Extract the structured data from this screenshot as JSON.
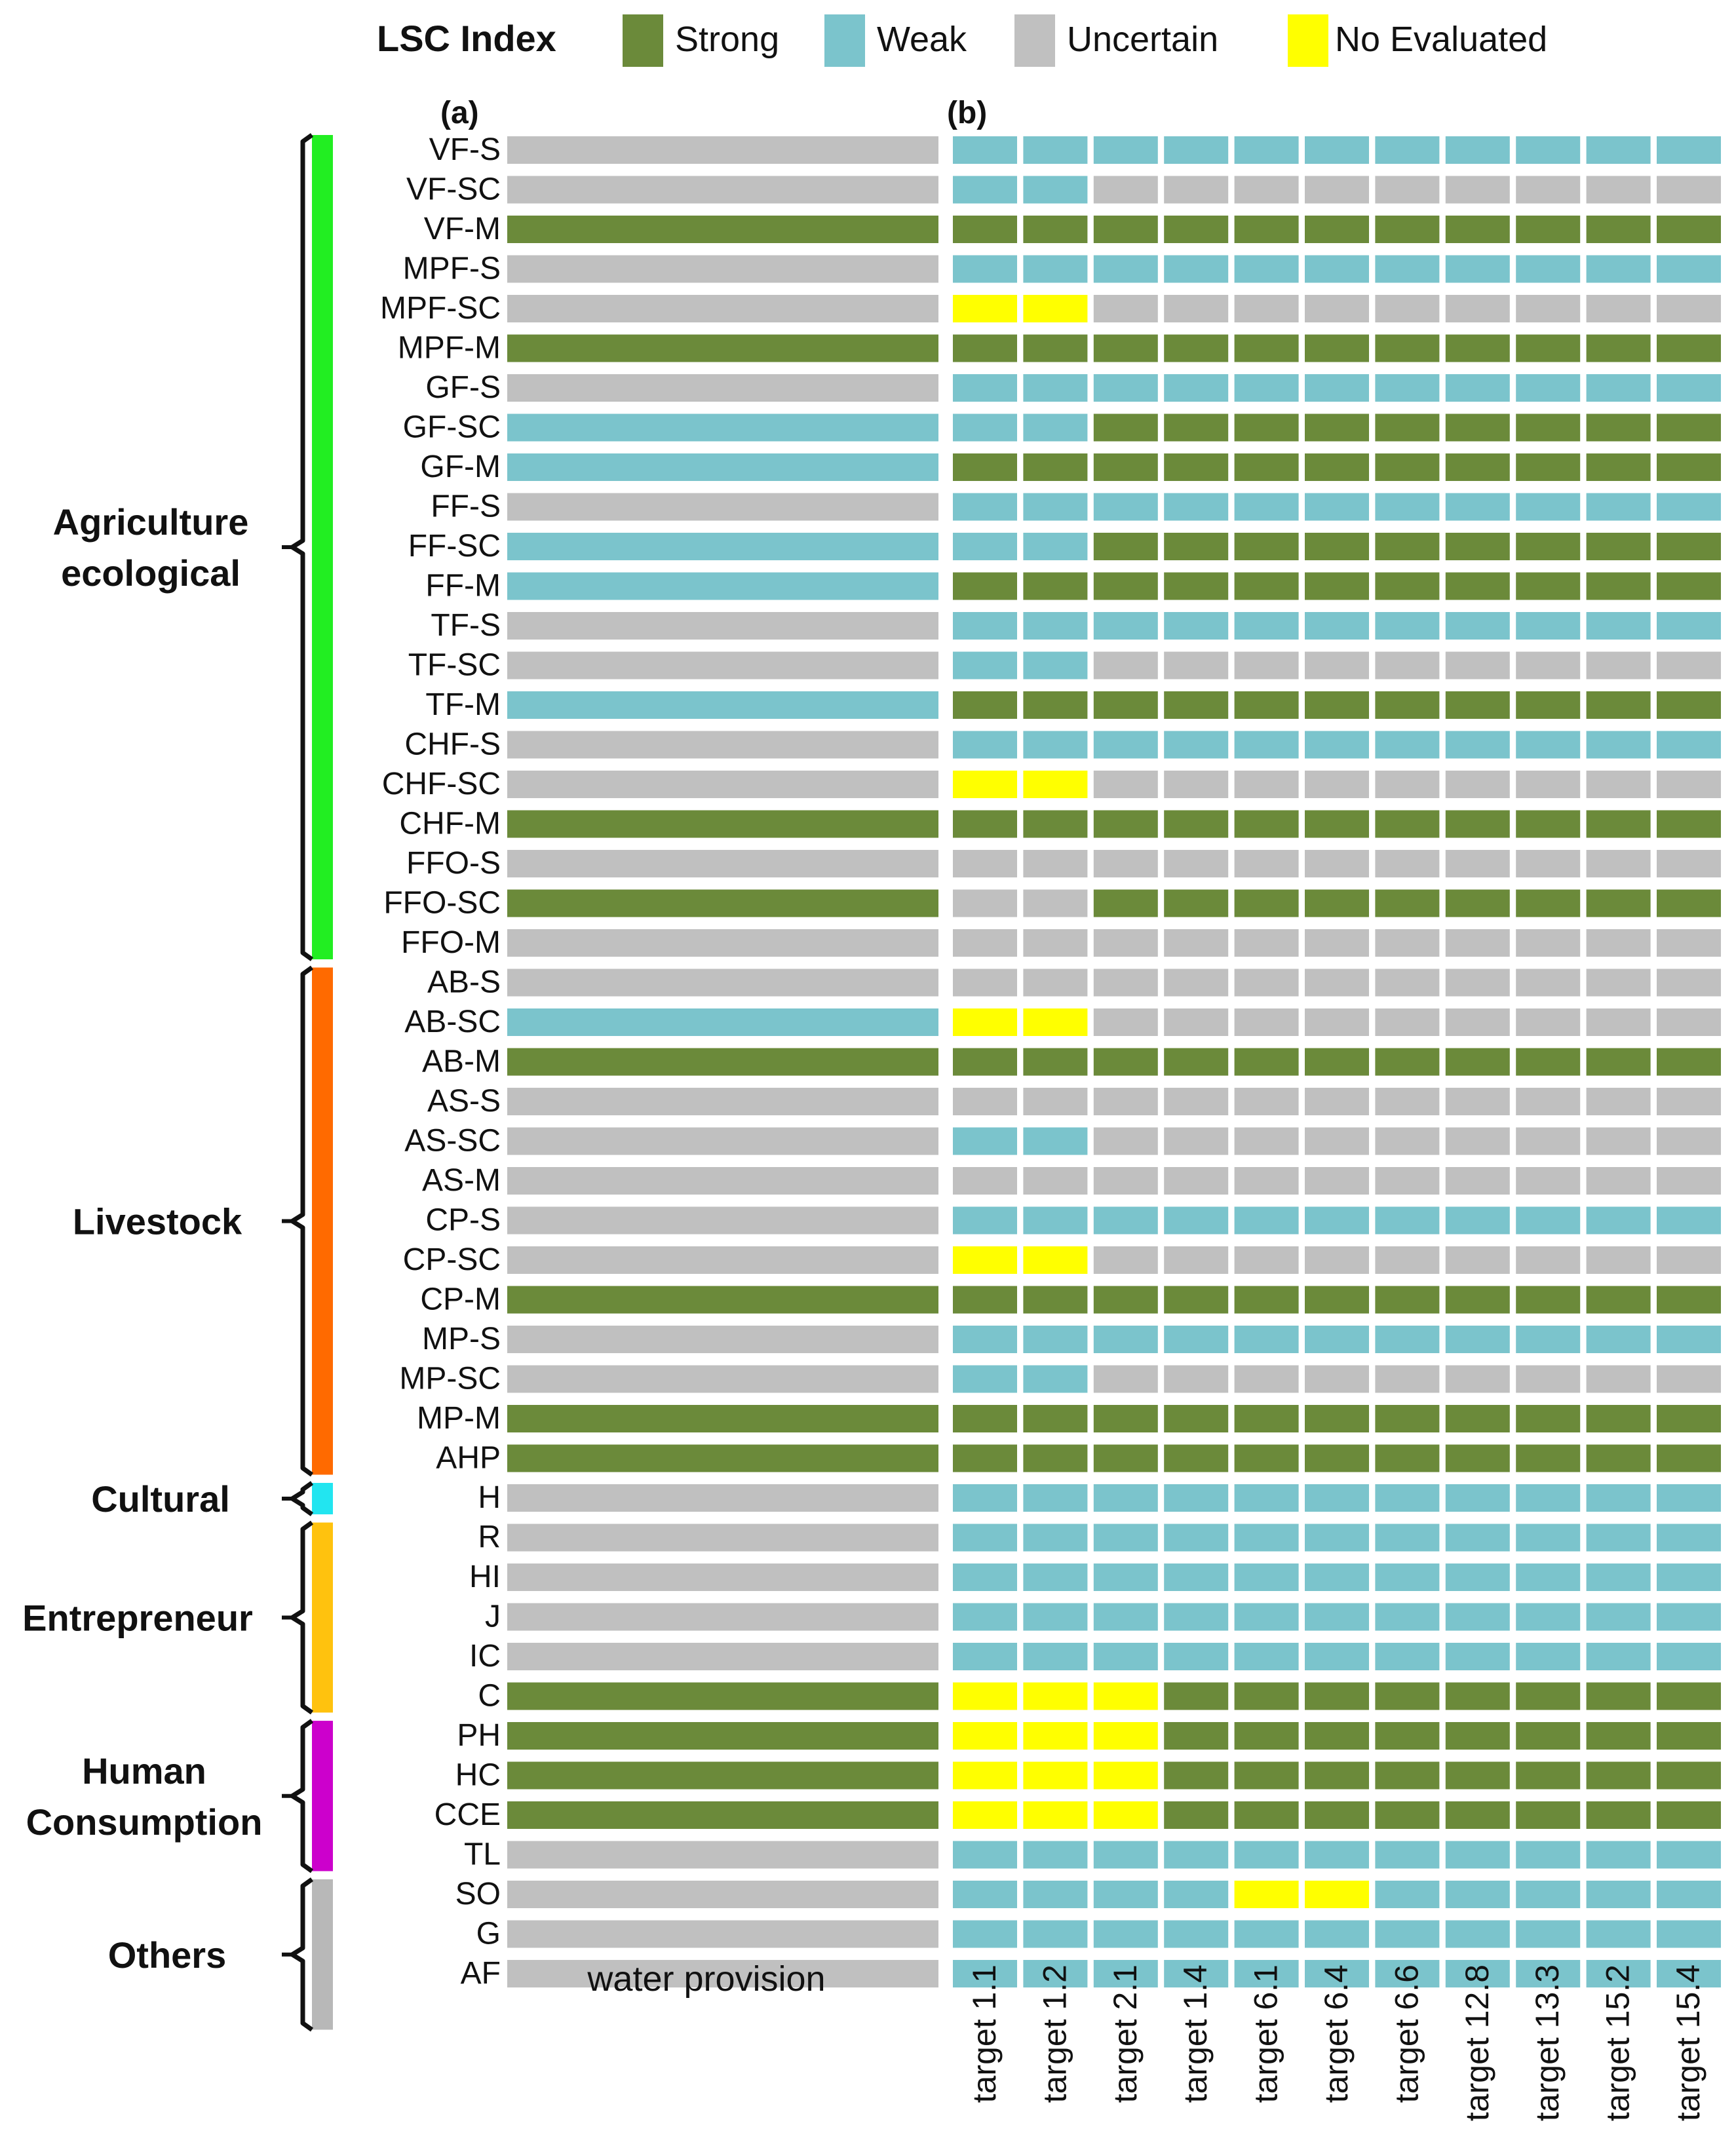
{
  "chart_data": {
    "type": "heatmap",
    "legend": {
      "title": "LSC Index",
      "items": [
        {
          "key": "S",
          "label": "Strong",
          "color": "#6b8a3a"
        },
        {
          "key": "W",
          "label": "Weak",
          "color": "#7bc4cc"
        },
        {
          "key": "U",
          "label": "Uncertain",
          "color": "#c0c0c0"
        },
        {
          "key": "N",
          "label": "No Evaluated",
          "color": "#ffff00"
        }
      ]
    },
    "panel_a": {
      "label": "(a)",
      "column": "water provision"
    },
    "panel_b": {
      "label": "(b)",
      "columns": [
        "target 1.1",
        "target 1.2",
        "target 2.1",
        "target 1.4",
        "target 6.1",
        "target 6.4",
        "target 6.6",
        "target 12.8",
        "target 13.3",
        "target 15.2",
        "target 15.4"
      ]
    },
    "groups": [
      {
        "name": "Agriculture ecological",
        "lines": [
          "Agriculture",
          "ecological"
        ],
        "color": "#22ee22",
        "start": 0,
        "end": 20
      },
      {
        "name": "Livestock",
        "lines": [
          "Livestock"
        ],
        "color": "#ff6a00",
        "start": 21,
        "end": 33
      },
      {
        "name": "Cultural",
        "lines": [
          "Cultural"
        ],
        "color": "#22e5f0",
        "start": 34,
        "end": 34
      },
      {
        "name": "Entrepreneur",
        "lines": [
          "Entrepreneur"
        ],
        "color": "#ffc20e",
        "start": 35,
        "end": 39
      },
      {
        "name": "Human Consumption",
        "lines": [
          "Human",
          "Consumption"
        ],
        "color": "#cc00cc",
        "start": 40,
        "end": 43
      },
      {
        "name": "Others",
        "lines": [
          "Others"
        ],
        "color": "#b8b8b8",
        "start": 44,
        "end": 47
      }
    ],
    "rows": [
      {
        "label": "VF-S",
        "a": "U",
        "b": "WWWWWWWWWWW"
      },
      {
        "label": "VF-SC",
        "a": "U",
        "b": "WWUUUUUUUUU"
      },
      {
        "label": "VF-M",
        "a": "S",
        "b": "SSSSSSSSSSS"
      },
      {
        "label": "MPF-S",
        "a": "U",
        "b": "WWWWWWWWWWW"
      },
      {
        "label": "MPF-SC",
        "a": "U",
        "b": "NNUUUUUUUUU"
      },
      {
        "label": "MPF-M",
        "a": "S",
        "b": "SSSSSSSSSSS"
      },
      {
        "label": "GF-S",
        "a": "U",
        "b": "WWWWWWWWWWW"
      },
      {
        "label": "GF-SC",
        "a": "W",
        "b": "WWSSSSSSSSS"
      },
      {
        "label": "GF-M",
        "a": "W",
        "b": "SSSSSSSSSSS"
      },
      {
        "label": "FF-S",
        "a": "U",
        "b": "WWWWWWWWWWW"
      },
      {
        "label": "FF-SC",
        "a": "W",
        "b": "WWSSSSSSSSS"
      },
      {
        "label": "FF-M",
        "a": "W",
        "b": "SSSSSSSSSSS"
      },
      {
        "label": "TF-S",
        "a": "U",
        "b": "WWWWWWWWWWW"
      },
      {
        "label": "TF-SC",
        "a": "U",
        "b": "WWUUUUUUUUU"
      },
      {
        "label": "TF-M",
        "a": "W",
        "b": "SSSSSSSSSSS"
      },
      {
        "label": "CHF-S",
        "a": "U",
        "b": "WWWWWWWWWWW"
      },
      {
        "label": "CHF-SC",
        "a": "U",
        "b": "NNUUUUUUUUU"
      },
      {
        "label": "CHF-M",
        "a": "S",
        "b": "SSSSSSSSSSS"
      },
      {
        "label": "FFO-S",
        "a": "U",
        "b": "UUUUUUUUUUU"
      },
      {
        "label": "FFO-SC",
        "a": "S",
        "b": "UUSSSSSSSSS"
      },
      {
        "label": "FFO-M",
        "a": "U",
        "b": "UUUUUUUUUUU"
      },
      {
        "label": "AB-S",
        "a": "U",
        "b": "UUUUUUUUUUU"
      },
      {
        "label": "AB-SC",
        "a": "W",
        "b": "NNUUUUUUUUU"
      },
      {
        "label": "AB-M",
        "a": "S",
        "b": "SSSSSSSSSSS"
      },
      {
        "label": "AS-S",
        "a": "U",
        "b": "UUUUUUUUUUU"
      },
      {
        "label": "AS-SC",
        "a": "U",
        "b": "WWUUUUUUUUU"
      },
      {
        "label": "AS-M",
        "a": "U",
        "b": "UUUUUUUUUUU"
      },
      {
        "label": "CP-S",
        "a": "U",
        "b": "WWWWWWWWWWW"
      },
      {
        "label": "CP-SC",
        "a": "U",
        "b": "NNUUUUUUUUU"
      },
      {
        "label": "CP-M",
        "a": "S",
        "b": "SSSSSSSSSSS"
      },
      {
        "label": "MP-S",
        "a": "U",
        "b": "WWWWWWWWWWW"
      },
      {
        "label": "MP-SC",
        "a": "U",
        "b": "WWUUUUUUUUU"
      },
      {
        "label": "MP-M",
        "a": "S",
        "b": "SSSSSSSSSSS"
      },
      {
        "label": "AHP",
        "a": "S",
        "b": "SSSSSSSSSSS"
      },
      {
        "label": "H",
        "a": "U",
        "b": "WWWWWWWWWWW"
      },
      {
        "label": "R",
        "a": "U",
        "b": "WWWWWWWWWWW"
      },
      {
        "label": "HI",
        "a": "U",
        "b": "WWWWWWWWWWW"
      },
      {
        "label": "J",
        "a": "U",
        "b": "WWWWWWWWWWW"
      },
      {
        "label": "IC",
        "a": "U",
        "b": "WWWWWWWWWWW"
      },
      {
        "label": "C",
        "a": "S",
        "b": "NNNSSSSSSSS"
      },
      {
        "label": "PH",
        "a": "S",
        "b": "NNNSSSSSSSS"
      },
      {
        "label": "HC",
        "a": "S",
        "b": "NNNSSSSSSSS"
      },
      {
        "label": "CCE",
        "a": "S",
        "b": "NNNSSSSSSSS"
      },
      {
        "label": "TL",
        "a": "U",
        "b": "WWWWWWWWWWW"
      },
      {
        "label": "SO",
        "a": "U",
        "b": "WWWWNNWWWWW"
      },
      {
        "label": "G",
        "a": "U",
        "b": "WWWWWWWWWWW"
      },
      {
        "label": "AF",
        "a": "U",
        "b": "WWWWWWWWWWW"
      }
    ]
  }
}
